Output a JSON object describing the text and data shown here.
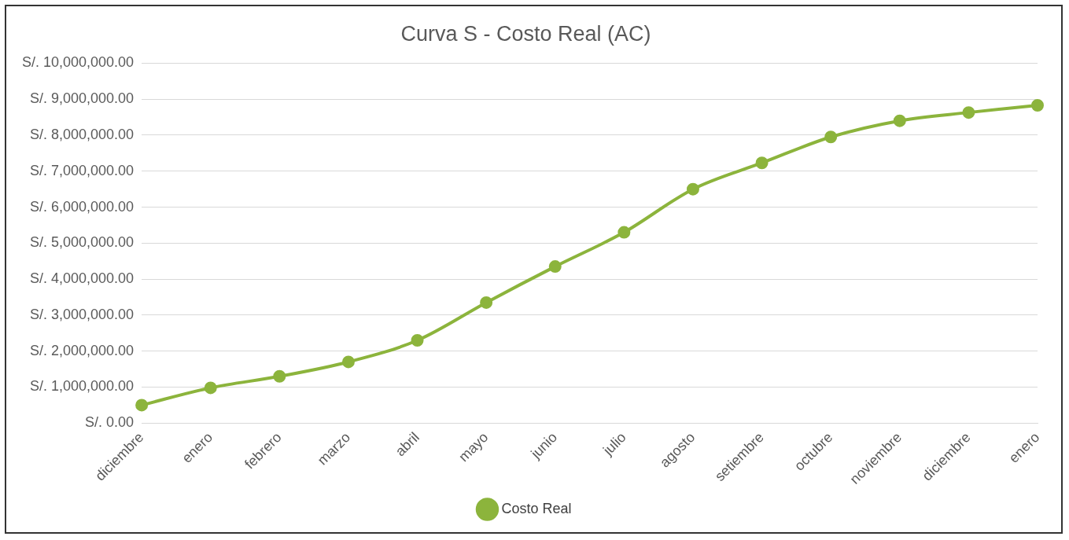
{
  "chart_data": {
    "type": "line",
    "title": "Curva S - Costo Real (AC)",
    "categories": [
      "diciembre",
      "enero",
      "febrero",
      "marzo",
      "abril",
      "mayo",
      "junio",
      "julio",
      "agosto",
      "setiembre",
      "octubre",
      "noviembre",
      "diciembre",
      "enero"
    ],
    "series": [
      {
        "name": "Costo Real",
        "color": "#8cb43c",
        "values": [
          500000,
          980000,
          1300000,
          1700000,
          2300000,
          3350000,
          4350000,
          5300000,
          6500000,
          7230000,
          7950000,
          8400000,
          8630000,
          8830000
        ]
      }
    ],
    "ylim": [
      0,
      10000000
    ],
    "yticks": [
      {
        "value": 0,
        "label": "S/. 0.00"
      },
      {
        "value": 1000000,
        "label": "S/. 1,000,000.00"
      },
      {
        "value": 2000000,
        "label": "S/. 2,000,000.00"
      },
      {
        "value": 3000000,
        "label": "S/. 3,000,000.00"
      },
      {
        "value": 4000000,
        "label": "S/. 4,000,000.00"
      },
      {
        "value": 5000000,
        "label": "S/. 5,000,000.00"
      },
      {
        "value": 6000000,
        "label": "S/. 6,000,000.00"
      },
      {
        "value": 7000000,
        "label": "S/. 7,000,000.00"
      },
      {
        "value": 8000000,
        "label": "S/. 8,000,000.00"
      },
      {
        "value": 9000000,
        "label": "S/. 9,000,000.00"
      },
      {
        "value": 10000000,
        "label": "S/. 10,000,000.00"
      }
    ],
    "grid": "y",
    "legend": "bottom",
    "marker": "circle",
    "line_style": "solid"
  }
}
